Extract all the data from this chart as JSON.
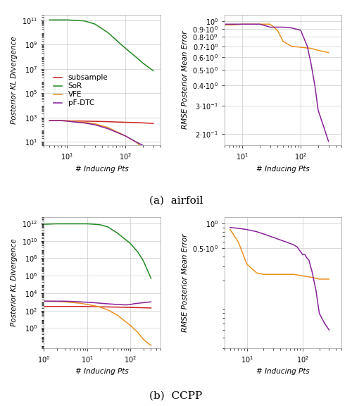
{
  "colors": {
    "subsample": "#cc2222",
    "SoR": "#228822",
    "VFE": "#e89020",
    "pF_DTC": "#882299"
  },
  "airfoil_kl": {
    "x_subsample": [
      5,
      6,
      7,
      8,
      10,
      12,
      15,
      20,
      30,
      50,
      100,
      150,
      200,
      300
    ],
    "y_subsample": [
      550.0,
      550.0,
      550.0,
      540.0,
      530.0,
      520.0,
      510.0,
      500.0,
      480.0,
      450.0,
      400.0,
      380.0,
      360.0,
      320.0
    ],
    "x_sor": [
      5,
      6,
      7,
      8,
      10,
      12,
      15,
      20,
      30,
      50,
      100,
      150,
      200,
      300
    ],
    "y_sor": [
      110000000000.0,
      110000000000.0,
      110000000000.0,
      110000000000.0,
      110000000000.0,
      105000000000.0,
      100000000000.0,
      90000000000.0,
      50000000000.0,
      10000000000.0,
      500000000.0,
      100000000.0,
      30000000.0,
      7000000.0
    ],
    "x_vfe": [
      5,
      6,
      7,
      8,
      10,
      12,
      15,
      20,
      30,
      50,
      100,
      150,
      200,
      300
    ],
    "y_vfe": [
      550.0,
      550.0,
      550.0,
      550.0,
      530.0,
      500.0,
      450.0,
      400.0,
      300.0,
      150.0,
      30,
      10,
      3,
      0.8
    ],
    "x_pfdtc": [
      5,
      6,
      7,
      8,
      10,
      12,
      15,
      20,
      30,
      50,
      100,
      150,
      200,
      300
    ],
    "y_pfdtc": [
      550.0,
      550.0,
      550.0,
      550.0,
      500.0,
      450.0,
      400.0,
      350.0,
      250.0,
      120.0,
      30,
      10,
      5,
      1.5
    ],
    "xlim": [
      4,
      400
    ],
    "ylim": [
      5,
      300000000000.0
    ],
    "yticks": [
      10,
      1000,
      100000,
      10000000,
      1000000000,
      100000000000
    ],
    "ylabel": "Posterior KL Divergence",
    "xlabel": "# Inducing Pts"
  },
  "airfoil_rmse": {
    "x_vfe": [
      5,
      7,
      10,
      15,
      20,
      30,
      40,
      50,
      70,
      100,
      150,
      200,
      300
    ],
    "y_vfe": [
      0.95,
      0.95,
      0.96,
      0.96,
      0.96,
      0.96,
      0.88,
      0.75,
      0.7,
      0.69,
      0.68,
      0.66,
      0.64
    ],
    "x_pfdtc": [
      5,
      7,
      10,
      15,
      20,
      30,
      50,
      70,
      100,
      130,
      150,
      175,
      200,
      250,
      300
    ],
    "y_pfdtc": [
      0.96,
      0.96,
      0.96,
      0.96,
      0.96,
      0.92,
      0.92,
      0.91,
      0.88,
      0.7,
      0.55,
      0.4,
      0.28,
      0.22,
      0.18
    ],
    "xlim": [
      5,
      500
    ],
    "ylim": [
      0.17,
      1.1
    ],
    "yticks": [
      0.2,
      0.3,
      0.4,
      0.5,
      0.6,
      0.7,
      0.8,
      0.9,
      1.0
    ],
    "ytick_labels": [
      "2·10⁻¹",
      "3·10⁻¹",
      "4·10⁻¹",
      "5·10⁻¹",
      "6·10⁻¹",
      "7·10⁻¹",
      "8·10⁻¹",
      "9·10⁻¹",
      "10⁰"
    ],
    "ylabel": "RMSE Posterior Mean Error",
    "xlabel": "# Inducing Pts"
  },
  "ccpp_kl": {
    "x_subsample": [
      1,
      2,
      3,
      5,
      7,
      10,
      15,
      20,
      30,
      50,
      100,
      200,
      300
    ],
    "y_subsample": [
      300.0,
      300.0,
      300.0,
      300.0,
      300.0,
      290.0,
      280.0,
      270.0,
      260.0,
      250.0,
      230.0,
      210.0,
      200.0
    ],
    "x_sor": [
      1,
      2,
      3,
      5,
      7,
      10,
      15,
      20,
      30,
      50,
      100,
      150,
      200,
      300
    ],
    "y_sor": [
      800000000000.0,
      900000000000.0,
      900000000000.0,
      900000000000.0,
      900000000000.0,
      900000000000.0,
      800000000000.0,
      700000000000.0,
      400000000000.0,
      80000000000.0,
      5000000000.0,
      500000000.0,
      50000000.0,
      500000.0
    ],
    "x_vfe": [
      1,
      2,
      3,
      5,
      7,
      10,
      15,
      20,
      30,
      50,
      100,
      150,
      200,
      250,
      300
    ],
    "y_vfe": [
      1200.0,
      1100.0,
      1000.0,
      800.0,
      700.0,
      500.0,
      350.0,
      250.0,
      120.0,
      30,
      2,
      0.3,
      0.05,
      0.02,
      0.01
    ],
    "x_pfdtc": [
      1,
      2,
      3,
      5,
      7,
      10,
      15,
      20,
      30,
      50,
      80,
      100,
      120,
      150,
      200,
      250,
      300
    ],
    "y_pfdtc": [
      1200.0,
      1200.0,
      1200.0,
      1100.0,
      1000.0,
      900.0,
      800.0,
      700.0,
      600.0,
      500.0,
      450.0,
      500.0,
      600.0,
      700.0,
      800.0,
      900.0,
      1000.0
    ],
    "xlim": [
      1,
      500
    ],
    "ylim": [
      0.005,
      5000000000000.0
    ],
    "yticks": [
      1,
      100,
      10000,
      1000000,
      100000000,
      10000000000,
      1000000000000
    ],
    "ylabel": "Posterior KL Divergence",
    "xlabel": "# Inducing Pts"
  },
  "ccpp_rmse": {
    "x_vfe": [
      5,
      7,
      10,
      15,
      20,
      30,
      50,
      70,
      100,
      150,
      200,
      300
    ],
    "y_vfe": [
      0.85,
      0.6,
      0.32,
      0.25,
      0.24,
      0.24,
      0.24,
      0.24,
      0.23,
      0.22,
      0.21,
      0.21
    ],
    "x_pfdtc": [
      5,
      7,
      10,
      15,
      20,
      30,
      50,
      70,
      80,
      100,
      110,
      120,
      130,
      150,
      175,
      200,
      250,
      300
    ],
    "y_pfdtc": [
      0.9,
      0.88,
      0.85,
      0.8,
      0.75,
      0.68,
      0.6,
      0.55,
      0.52,
      0.42,
      0.42,
      0.38,
      0.36,
      0.25,
      0.15,
      0.08,
      0.06,
      0.05
    ],
    "xlim": [
      4,
      500
    ],
    "ylim": [
      0.03,
      1.2
    ],
    "yticks": [
      0.5,
      1.0
    ],
    "ytick_labels": [
      "5·10⁻¹",
      "10⁰"
    ],
    "ylabel": "RMSE Posterior Mean Error",
    "xlabel": "# Inducing Pts"
  },
  "caption_a": "(a)  airfoil",
  "caption_b": "(b)  CCPP",
  "axis_label_fontsize": 7.5,
  "tick_fontsize": 7,
  "legend_fontsize": 7.5,
  "linewidth": 1.1,
  "grid_color": "#cccccc",
  "font_family": "DejaVu Sans"
}
